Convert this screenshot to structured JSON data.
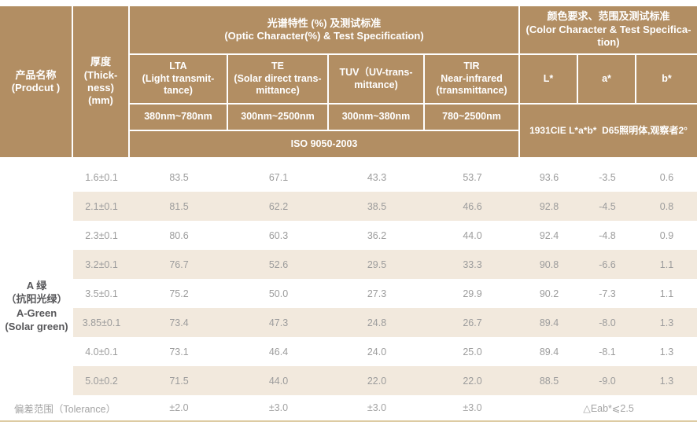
{
  "colors": {
    "header_bg": "#b28e63",
    "stripe_bg": "#f2e9dd",
    "header_text": "#ffffff",
    "data_text": "#9c9c9c",
    "product_text": "#57575a",
    "bottom_line": "#ddcba3"
  },
  "table": {
    "header": {
      "product": {
        "lines": [
          "产品名称",
          "(Prodcut )"
        ]
      },
      "thickness": {
        "lines": [
          "厚度",
          "(Thick-",
          "ness)",
          "(mm)"
        ]
      },
      "optic_group": {
        "lines": [
          "光谱特性 (%) 及测试标准",
          "(Optic Character(%) & Test Specification)"
        ]
      },
      "color_group": {
        "lines": [
          "颜色要求、范围及测试标准",
          "(Color Character & Test Specifica-",
          "tion)"
        ]
      },
      "lta": {
        "lines": [
          "LTA",
          "(Light transmit-",
          "tance)"
        ],
        "range": "380nm~780nm"
      },
      "te": {
        "lines": [
          "TE",
          "(Solar direct trans-",
          "mittance)"
        ],
        "range": "300nm~2500nm"
      },
      "tuv": {
        "lines": [
          "TUV（UV-trans-",
          "mittance)"
        ],
        "range": "300nm~380nm"
      },
      "tir": {
        "lines": [
          "TIR",
          "Near-infrared",
          "(transmittance)"
        ],
        "range": "780~2500nm"
      },
      "l_star": "L*",
      "a_star": "a*",
      "b_star": "b*",
      "cie_note": "1931CIE L*a*b*  D65照明体,观察者2°",
      "iso_standard": "ISO 9050-2003"
    },
    "product_name": {
      "lines": [
        "A 绿",
        "（抗阳光绿）",
        "A-Green",
        "(Solar green)"
      ]
    },
    "rows": [
      {
        "thickness": "1.6±0.1",
        "lta": "83.5",
        "te": "67.1",
        "tuv": "43.3",
        "tir": "53.7",
        "l": "93.6",
        "a": "-3.5",
        "b": "0.6"
      },
      {
        "thickness": "2.1±0.1",
        "lta": "81.5",
        "te": "62.2",
        "tuv": "38.5",
        "tir": "46.6",
        "l": "92.8",
        "a": "-4.5",
        "b": "0.8"
      },
      {
        "thickness": "2.3±0.1",
        "lta": "80.6",
        "te": "60.3",
        "tuv": "36.2",
        "tir": "44.0",
        "l": "92.4",
        "a": "-4.8",
        "b": "0.9"
      },
      {
        "thickness": "3.2±0.1",
        "lta": "76.7",
        "te": "52.6",
        "tuv": "29.5",
        "tir": "33.3",
        "l": "90.8",
        "a": "-6.6",
        "b": "1.1"
      },
      {
        "thickness": "3.5±0.1",
        "lta": "75.2",
        "te": "50.0",
        "tuv": "27.3",
        "tir": "29.9",
        "l": "90.2",
        "a": "-7.3",
        "b": "1.1"
      },
      {
        "thickness": "3.85±0.1",
        "lta": "73.4",
        "te": "47.3",
        "tuv": "24.8",
        "tir": "26.7",
        "l": "89.4",
        "a": "-8.0",
        "b": "1.3"
      },
      {
        "thickness": "4.0±0.1",
        "lta": "73.1",
        "te": "46.4",
        "tuv": "24.0",
        "tir": "25.0",
        "l": "89.4",
        "a": "-8.1",
        "b": "1.3"
      },
      {
        "thickness": "5.0±0.2",
        "lta": "71.5",
        "te": "44.0",
        "tuv": "22.0",
        "tir": "22.0",
        "l": "88.5",
        "a": "-9.0",
        "b": "1.3"
      }
    ],
    "tolerance": {
      "label": "偏差范围（Tolerance）",
      "lta": "±2.0",
      "te": "±3.0",
      "tuv": "±3.0",
      "tir": "±3.0",
      "lab": "△Eab*⩽2.5"
    }
  }
}
